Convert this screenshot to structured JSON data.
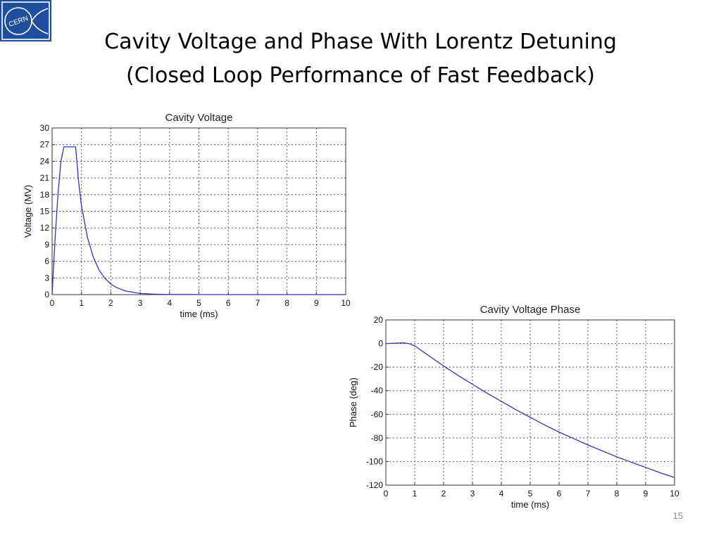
{
  "slide": {
    "title_line1": "Cavity Voltage and Phase With Lorentz Detuning",
    "title_line2": "(Closed Loop Performance of Fast Feedback)",
    "page_number": "15",
    "logo_text": "CERN",
    "logo_color": "#1e4e9c"
  },
  "chart_data": [
    {
      "type": "line",
      "title": "Cavity Voltage",
      "xlabel": "time (ms)",
      "ylabel": "Voltage (MV)",
      "xlim": [
        0,
        10
      ],
      "ylim": [
        0,
        30
      ],
      "xticks": [
        0,
        1,
        2,
        3,
        4,
        5,
        6,
        7,
        8,
        9,
        10
      ],
      "yticks": [
        0,
        3,
        6,
        9,
        12,
        15,
        18,
        21,
        24,
        27,
        30
      ],
      "grid": true,
      "line_color": "#3333bb",
      "series": [
        {
          "x": [
            0,
            0.1,
            0.2,
            0.3,
            0.4,
            0.5,
            0.6,
            0.7,
            0.8,
            0.9,
            1.0,
            1.2,
            1.4,
            1.6,
            1.8,
            2.0,
            2.2,
            2.5,
            3.0,
            3.5,
            4.0,
            5.0,
            6.0,
            8.0,
            10.0
          ],
          "y": [
            0,
            10,
            18,
            24,
            26.6,
            26.6,
            26.6,
            26.6,
            26.6,
            20.5,
            16,
            10.4,
            6.8,
            4.4,
            2.9,
            1.9,
            1.25,
            0.65,
            0.2,
            0.08,
            0.03,
            0.01,
            0,
            0,
            0
          ]
        }
      ]
    },
    {
      "type": "line",
      "title": "Cavity Voltage Phase",
      "xlabel": "time (ms)",
      "ylabel": "Phase (deg)",
      "xlim": [
        0,
        10
      ],
      "ylim": [
        -120,
        20
      ],
      "xticks": [
        0,
        1,
        2,
        3,
        4,
        5,
        6,
        7,
        8,
        9,
        10
      ],
      "yticks": [
        20,
        0,
        -20,
        -40,
        -60,
        -80,
        -100,
        -120
      ],
      "grid": true,
      "line_color": "#3333bb",
      "series": [
        {
          "x": [
            0,
            0.3,
            0.6,
            0.8,
            0.9,
            1.0,
            1.5,
            2.0,
            2.5,
            3.0,
            3.5,
            4.0,
            4.5,
            5.0,
            5.5,
            6.0,
            6.5,
            7.0,
            7.5,
            8.0,
            8.5,
            9.0,
            9.5,
            10.0
          ],
          "y": [
            0,
            0.2,
            0.5,
            0,
            -1,
            -2,
            -10.5,
            -19,
            -27,
            -34.5,
            -42,
            -49,
            -56,
            -62.5,
            -69,
            -75,
            -80.5,
            -86,
            -91,
            -96,
            -100.5,
            -105,
            -109.5,
            -113.5
          ]
        }
      ]
    }
  ]
}
